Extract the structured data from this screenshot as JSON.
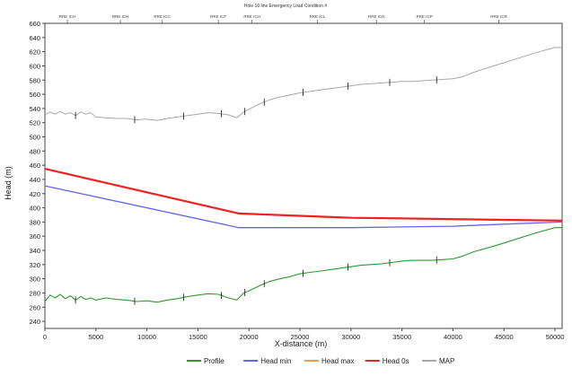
{
  "chart_data": {
    "type": "line",
    "title": "Hole 10 line Emergency Load Condition #",
    "xlabel": "X-distance (m)",
    "ylabel": "Head (m)",
    "xlim": [
      0,
      50700
    ],
    "ylim": [
      230,
      660
    ],
    "x_ticks": [
      0,
      5000,
      10000,
      15000,
      20000,
      25000,
      30000,
      35000,
      40000,
      45000,
      50000
    ],
    "y_ticks": [
      240,
      260,
      280,
      300,
      320,
      340,
      360,
      380,
      400,
      420,
      440,
      460,
      480,
      500,
      520,
      540,
      560,
      580,
      600,
      620,
      640,
      660
    ],
    "top_markers": [
      {
        "label": "RRE ICH",
        "x": 2200
      },
      {
        "label": "RRE ICN",
        "x": 7400
      },
      {
        "label": "RRE ICC",
        "x": 11500
      },
      {
        "label": "RRE ICF",
        "x": 17000
      },
      {
        "label": "RRE ICH",
        "x": 20300
      },
      {
        "label": "RRE ICL",
        "x": 26700
      },
      {
        "label": "RRE ICN",
        "x": 32500
      },
      {
        "label": "RRE ICP",
        "x": 37200
      },
      {
        "label": "RRE ICR",
        "x": 44500
      }
    ],
    "grid": false,
    "legend_position": "bottom",
    "series": [
      {
        "name": "Profile",
        "color": "#2e9a2e",
        "x": [
          0,
          500,
          1000,
          1500,
          2000,
          2500,
          3000,
          3500,
          4000,
          4500,
          5000,
          6000,
          7000,
          8000,
          9000,
          10000,
          11000,
          12000,
          13000,
          14000,
          15000,
          16000,
          17000,
          18000,
          18800,
          19500,
          20000,
          21000,
          22000,
          23000,
          24000,
          25000,
          26000,
          27000,
          28000,
          29000,
          30000,
          31000,
          32000,
          33000,
          34000,
          35000,
          36000,
          37000,
          38000,
          39000,
          40000,
          41000,
          42000,
          44000,
          46000,
          48000,
          50000,
          50700
        ],
        "y": [
          268,
          277,
          273,
          278,
          272,
          276,
          270,
          275,
          271,
          273,
          270,
          273,
          271,
          270,
          268,
          269,
          267,
          270,
          272,
          275,
          277,
          279,
          278,
          273,
          270,
          280,
          283,
          290,
          296,
          300,
          303,
          307,
          309,
          311,
          313,
          315,
          317,
          319,
          320,
          321,
          323,
          325,
          326,
          326,
          326,
          327,
          328,
          332,
          338,
          346,
          355,
          364,
          372,
          372
        ]
      },
      {
        "name": "Head min",
        "color": "#6464f0",
        "x": [
          0,
          19000,
          30000,
          35000,
          40000,
          45000,
          50700
        ],
        "y": [
          431,
          372,
          372,
          373,
          374,
          377,
          380
        ]
      },
      {
        "name": "Head max",
        "color": "#f0a040",
        "x": [
          0,
          19000,
          30000,
          35000,
          40000,
          45000,
          50700
        ],
        "y": [
          455,
          392,
          386,
          385,
          384,
          383,
          382
        ]
      },
      {
        "name": "Head 0s",
        "color": "#ee2222",
        "x": [
          0,
          19000,
          30000,
          35000,
          40000,
          45000,
          50700
        ],
        "y": [
          455,
          392,
          386,
          385,
          384,
          383,
          382
        ]
      },
      {
        "name": "MAP",
        "color": "#a8a8a8",
        "x": [
          0,
          500,
          1000,
          1500,
          2000,
          2500,
          3000,
          3500,
          4000,
          4500,
          5000,
          6000,
          7000,
          8000,
          9000,
          10000,
          11000,
          12000,
          13000,
          14000,
          15000,
          16000,
          17000,
          18000,
          18800,
          19500,
          20000,
          21000,
          22000,
          23000,
          24000,
          25000,
          26000,
          27000,
          28000,
          29000,
          30000,
          31000,
          32000,
          33000,
          34000,
          35000,
          36000,
          37000,
          38000,
          39000,
          40000,
          41000,
          42000,
          44000,
          46000,
          48000,
          50000,
          50700
        ],
        "y": [
          531,
          535,
          532,
          536,
          532,
          534,
          530,
          535,
          532,
          534,
          528,
          527,
          526,
          526,
          524,
          525,
          523,
          526,
          528,
          530,
          532,
          534,
          533,
          531,
          527,
          535,
          539,
          546,
          552,
          556,
          559,
          562,
          564,
          566,
          568,
          570,
          572,
          574,
          575,
          576,
          577,
          578,
          578,
          579,
          580,
          581,
          582,
          585,
          591,
          600,
          609,
          618,
          626,
          626
        ]
      }
    ]
  }
}
